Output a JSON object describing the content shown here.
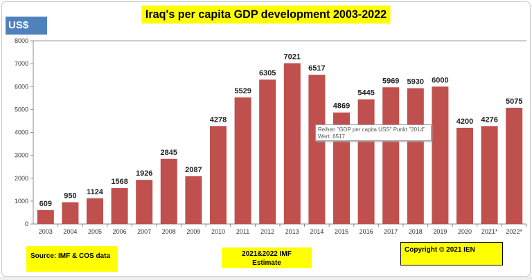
{
  "chart_data": {
    "type": "bar",
    "title": "Iraq's  per capita GDP development 2003-2022",
    "ylabel": "US$",
    "categories": [
      "2003",
      "2004",
      "2005",
      "2006",
      "2007",
      "2008",
      "2009",
      "2010",
      "2011",
      "2012",
      "2013",
      "2014",
      "2015",
      "2016",
      "2017",
      "2018",
      "2019",
      "2020",
      "2021*",
      "2022*"
    ],
    "values": [
      609,
      950,
      1124,
      1568,
      1926,
      2845,
      2087,
      4278,
      5529,
      6305,
      7021,
      6517,
      4869,
      5445,
      5969,
      5930,
      6000,
      4200,
      4276,
      5075
    ],
    "ylim": [
      0,
      8000
    ],
    "yticks": [
      0,
      1000,
      2000,
      3000,
      4000,
      5000,
      6000,
      7000,
      8000
    ],
    "bar_color": "#c0504d",
    "grid": false,
    "legend": "none"
  },
  "annotations": {
    "source": "Source: IMF & COS data",
    "estimate_line1": "2021&2022  IMF",
    "estimate_line2": "Estimate",
    "copyright": "Copyright © 2021 IEN"
  },
  "tooltip": {
    "line1": "Reihen \"GDP per capita USS\" Punkt \"2014\"",
    "line2": "Wert: 6517"
  }
}
